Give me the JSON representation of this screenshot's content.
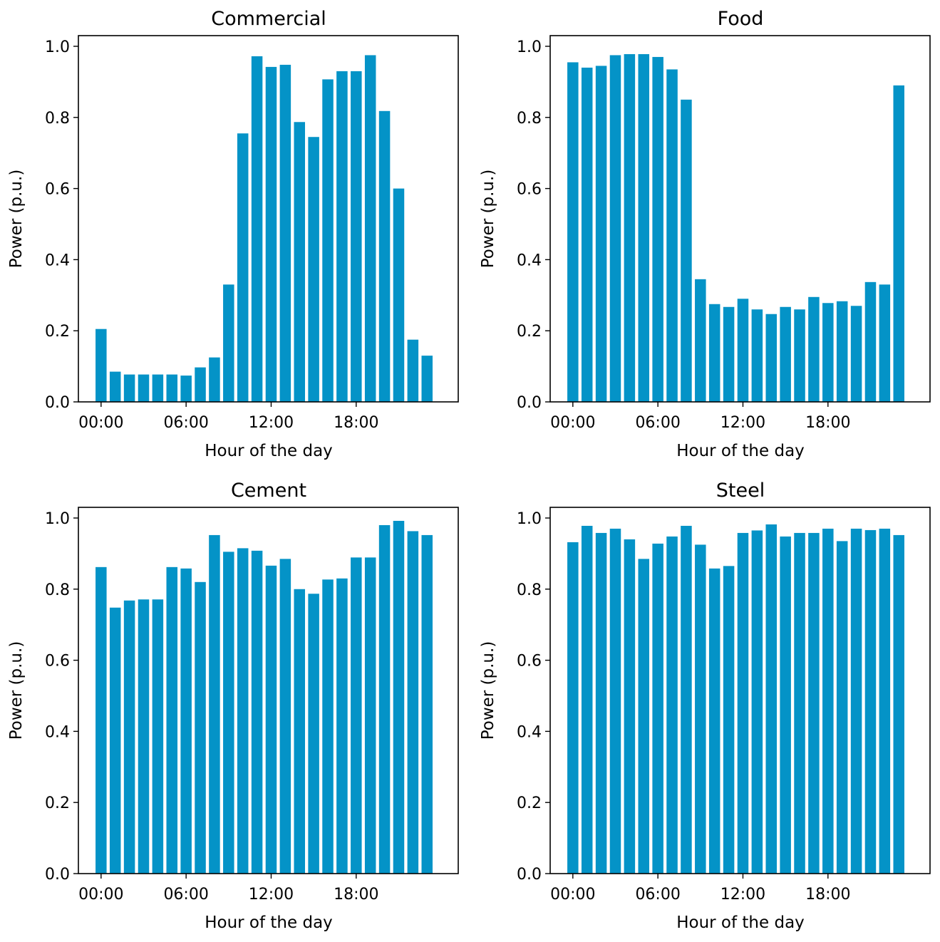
{
  "chart_data": [
    {
      "type": "bar",
      "title": "Commercial",
      "xlabel": "Hour of the day",
      "ylabel": "Power (p.u.)",
      "ylim": [
        0,
        1.03
      ],
      "yticks": [
        "0.0",
        "0.2",
        "0.4",
        "0.6",
        "0.8",
        "1.0"
      ],
      "xticks": [
        {
          "hour": 0,
          "label": "00:00"
        },
        {
          "hour": 6,
          "label": "06:00"
        },
        {
          "hour": 12,
          "label": "12:00"
        },
        {
          "hour": 18,
          "label": "18:00"
        }
      ],
      "hours": [
        0,
        1,
        2,
        3,
        4,
        5,
        6,
        7,
        8,
        9,
        10,
        11,
        12,
        13,
        14,
        15,
        16,
        17,
        18,
        19,
        20,
        21,
        22,
        23
      ],
      "values": [
        0.205,
        0.085,
        0.077,
        0.077,
        0.077,
        0.077,
        0.074,
        0.097,
        0.125,
        0.33,
        0.755,
        0.972,
        0.942,
        0.948,
        0.787,
        0.745,
        0.907,
        0.93,
        0.93,
        0.975,
        0.818,
        0.6,
        0.175,
        0.13
      ],
      "color": "#0493c7"
    },
    {
      "type": "bar",
      "title": "Food",
      "xlabel": "Hour of the day",
      "ylabel": "Power (p.u.)",
      "ylim": [
        0,
        1.03
      ],
      "yticks": [
        "0.0",
        "0.2",
        "0.4",
        "0.6",
        "0.8",
        "1.0"
      ],
      "xticks": [
        {
          "hour": 0,
          "label": "00:00"
        },
        {
          "hour": 6,
          "label": "06:00"
        },
        {
          "hour": 12,
          "label": "12:00"
        },
        {
          "hour": 18,
          "label": "18:00"
        }
      ],
      "hours": [
        0,
        1,
        2,
        3,
        4,
        5,
        6,
        7,
        8,
        9,
        10,
        11,
        12,
        13,
        14,
        15,
        16,
        17,
        18,
        19,
        20,
        21,
        22,
        23
      ],
      "values": [
        0.955,
        0.94,
        0.945,
        0.975,
        0.978,
        0.978,
        0.97,
        0.935,
        0.85,
        0.345,
        0.275,
        0.267,
        0.29,
        0.26,
        0.247,
        0.267,
        0.26,
        0.295,
        0.278,
        0.283,
        0.27,
        0.337,
        0.33,
        0.89
      ],
      "color": "#0493c7"
    },
    {
      "type": "bar",
      "title": "Cement",
      "xlabel": "Hour of the day",
      "ylabel": "Power (p.u.)",
      "ylim": [
        0,
        1.03
      ],
      "yticks": [
        "0.0",
        "0.2",
        "0.4",
        "0.6",
        "0.8",
        "1.0"
      ],
      "xticks": [
        {
          "hour": 0,
          "label": "00:00"
        },
        {
          "hour": 6,
          "label": "06:00"
        },
        {
          "hour": 12,
          "label": "12:00"
        },
        {
          "hour": 18,
          "label": "18:00"
        }
      ],
      "hours": [
        0,
        1,
        2,
        3,
        4,
        5,
        6,
        7,
        8,
        9,
        10,
        11,
        12,
        13,
        14,
        15,
        16,
        17,
        18,
        19,
        20,
        21,
        22,
        23
      ],
      "values": [
        0.862,
        0.748,
        0.768,
        0.771,
        0.771,
        0.862,
        0.858,
        0.82,
        0.952,
        0.905,
        0.915,
        0.908,
        0.866,
        0.885,
        0.8,
        0.787,
        0.827,
        0.83,
        0.889,
        0.889,
        0.98,
        0.992,
        0.963,
        0.952
      ],
      "color": "#0493c7"
    },
    {
      "type": "bar",
      "title": "Steel",
      "xlabel": "Hour of the day",
      "ylabel": "Power (p.u.)",
      "ylim": [
        0,
        1.03
      ],
      "yticks": [
        "0.0",
        "0.2",
        "0.4",
        "0.6",
        "0.8",
        "1.0"
      ],
      "xticks": [
        {
          "hour": 0,
          "label": "00:00"
        },
        {
          "hour": 6,
          "label": "06:00"
        },
        {
          "hour": 12,
          "label": "12:00"
        },
        {
          "hour": 18,
          "label": "18:00"
        }
      ],
      "hours": [
        0,
        1,
        2,
        3,
        4,
        5,
        6,
        7,
        8,
        9,
        10,
        11,
        12,
        13,
        14,
        15,
        16,
        17,
        18,
        19,
        20,
        21,
        22,
        23
      ],
      "values": [
        0.932,
        0.978,
        0.958,
        0.97,
        0.94,
        0.885,
        0.928,
        0.948,
        0.978,
        0.925,
        0.858,
        0.865,
        0.958,
        0.965,
        0.982,
        0.948,
        0.958,
        0.958,
        0.97,
        0.935,
        0.97,
        0.966,
        0.97,
        0.952
      ],
      "color": "#0493c7"
    }
  ]
}
